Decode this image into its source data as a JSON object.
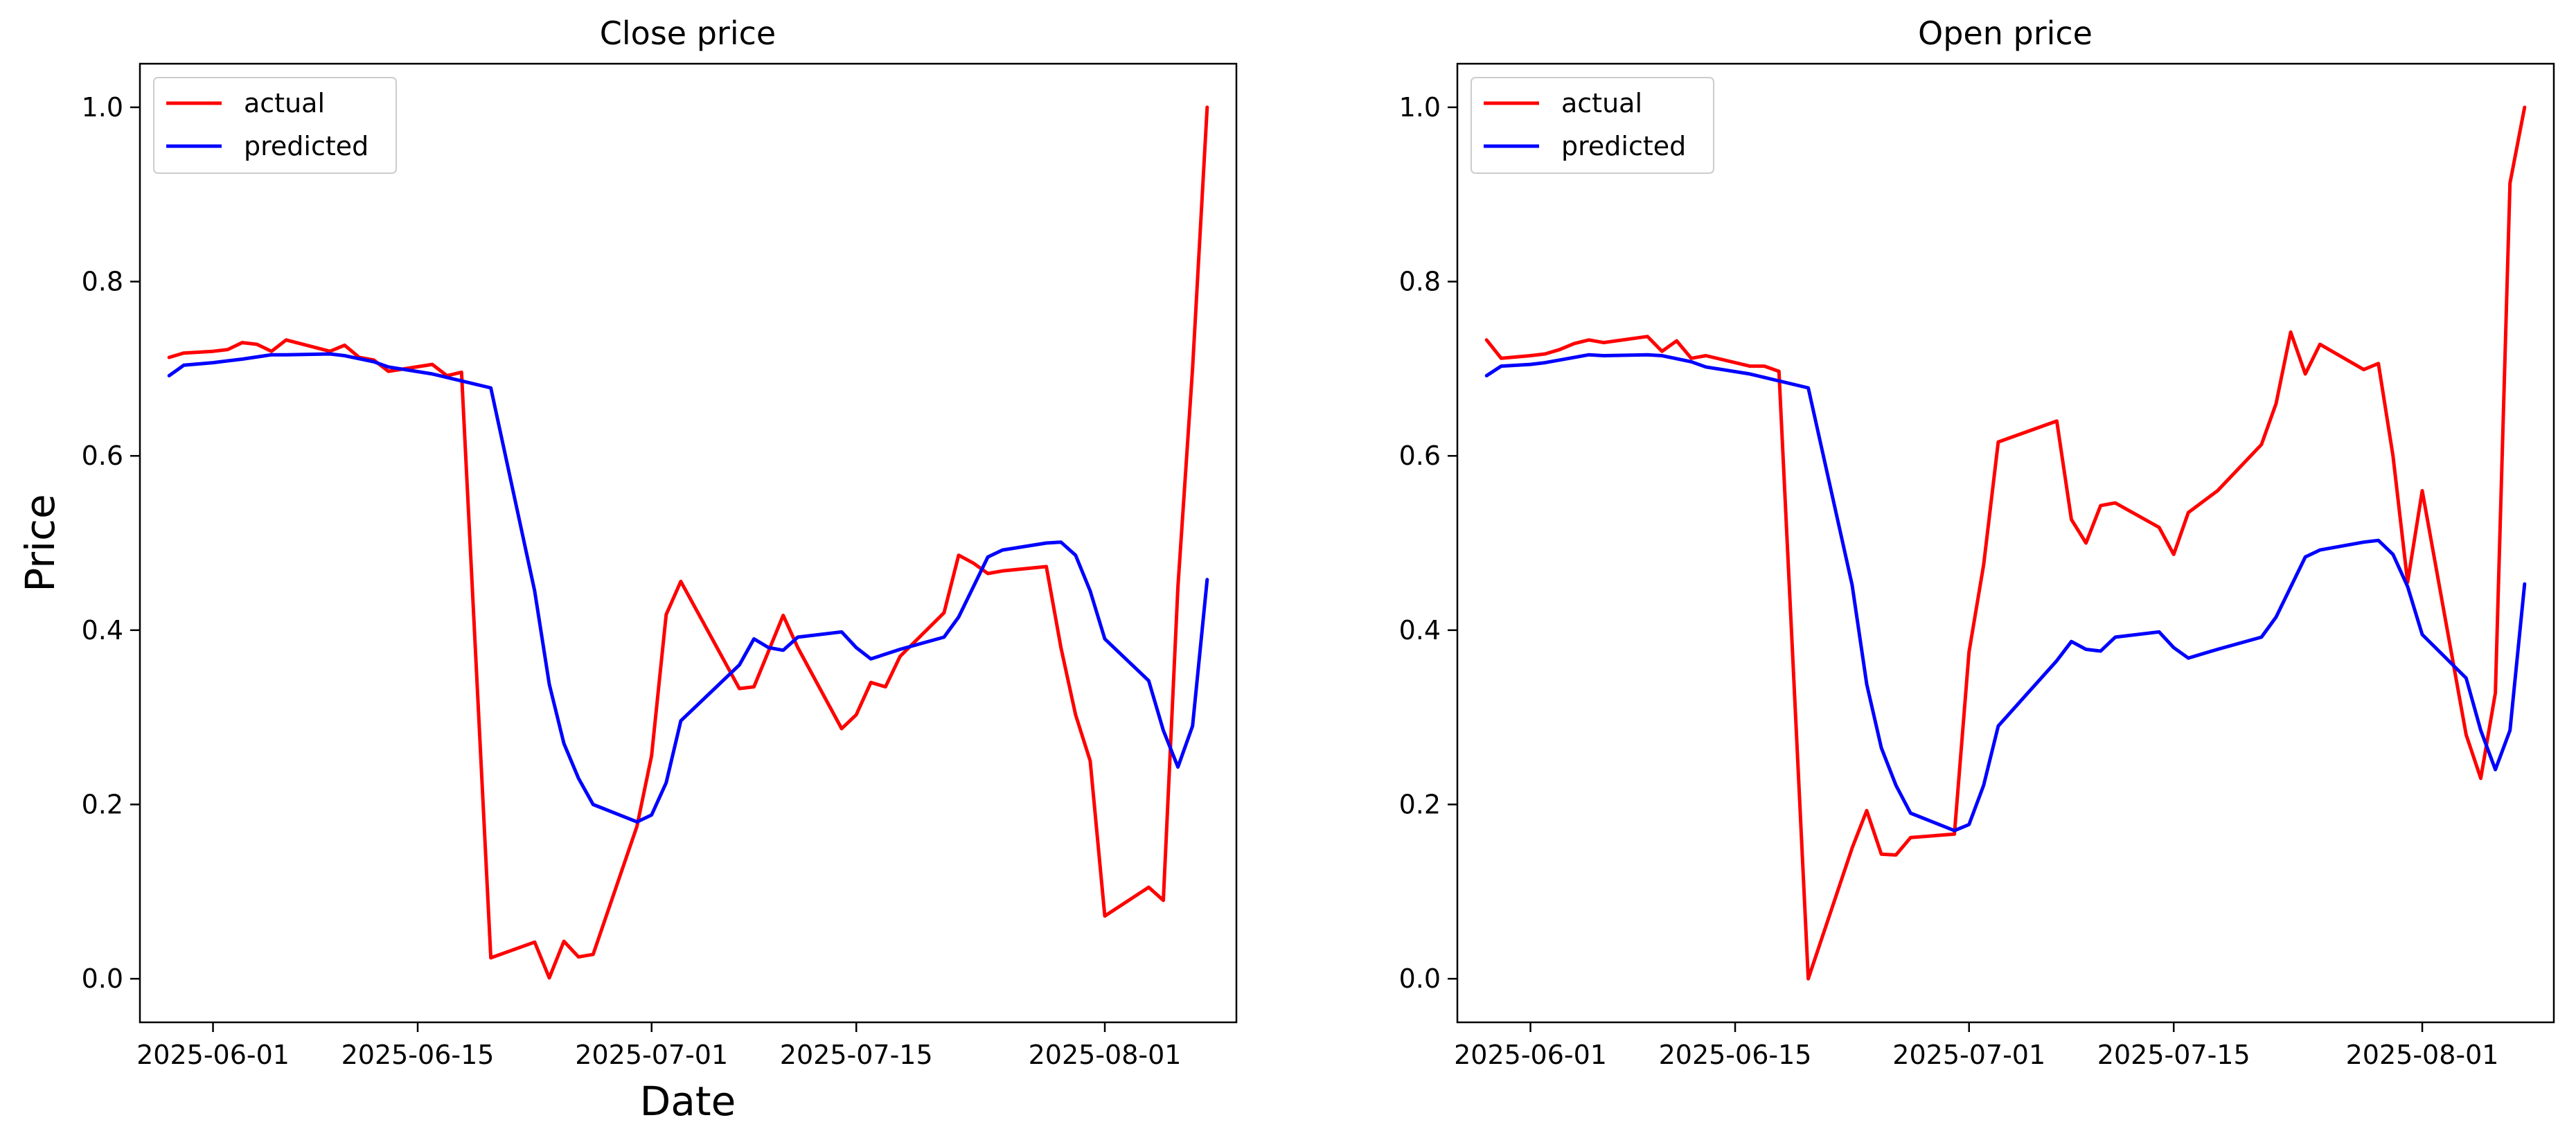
{
  "figure": {
    "xlabel": "Date",
    "ylabel": "Price"
  },
  "chart_data": [
    {
      "type": "line",
      "title": "Close price",
      "xlabel": "Date",
      "ylabel": "Price",
      "x_ticks": [
        "2025-06-01",
        "2025-06-15",
        "2025-07-01",
        "2025-07-15",
        "2025-08-01"
      ],
      "y_ticks": [
        "0.0",
        "0.2",
        "0.4",
        "0.6",
        "0.8",
        "1.0"
      ],
      "xlim": [
        "2025-05-27",
        "2025-08-10"
      ],
      "ylim": [
        -0.05,
        1.05
      ],
      "legend_position": "upper-left",
      "grid": false,
      "series": [
        {
          "name": "actual",
          "color": "#ff0000",
          "points": [
            [
              "2025-05-29",
              0.713
            ],
            [
              "2025-05-30",
              0.718
            ],
            [
              "2025-06-01",
              0.72
            ],
            [
              "2025-06-02",
              0.722
            ],
            [
              "2025-06-03",
              0.73
            ],
            [
              "2025-06-04",
              0.728
            ],
            [
              "2025-06-05",
              0.72
            ],
            [
              "2025-06-06",
              0.733
            ],
            [
              "2025-06-09",
              0.72
            ],
            [
              "2025-06-10",
              0.727
            ],
            [
              "2025-06-11",
              0.713
            ],
            [
              "2025-06-12",
              0.71
            ],
            [
              "2025-06-13",
              0.697
            ],
            [
              "2025-06-16",
              0.705
            ],
            [
              "2025-06-17",
              0.692
            ],
            [
              "2025-06-18",
              0.696
            ],
            [
              "2025-06-20",
              0.024
            ],
            [
              "2025-06-23",
              0.042
            ],
            [
              "2025-06-24",
              0.001
            ],
            [
              "2025-06-25",
              0.043
            ],
            [
              "2025-06-26",
              0.025
            ],
            [
              "2025-06-27",
              0.028
            ],
            [
              "2025-06-30",
              0.175
            ],
            [
              "2025-07-01",
              0.256
            ],
            [
              "2025-07-02",
              0.418
            ],
            [
              "2025-07-03",
              0.456
            ],
            [
              "2025-07-07",
              0.333
            ],
            [
              "2025-07-08",
              0.335
            ],
            [
              "2025-07-10",
              0.417
            ],
            [
              "2025-07-11",
              0.38
            ],
            [
              "2025-07-14",
              0.287
            ],
            [
              "2025-07-15",
              0.303
            ],
            [
              "2025-07-16",
              0.34
            ],
            [
              "2025-07-17",
              0.335
            ],
            [
              "2025-07-18",
              0.37
            ],
            [
              "2025-07-21",
              0.42
            ],
            [
              "2025-07-22",
              0.486
            ],
            [
              "2025-07-23",
              0.477
            ],
            [
              "2025-07-24",
              0.465
            ],
            [
              "2025-07-25",
              0.468
            ],
            [
              "2025-07-28",
              0.473
            ],
            [
              "2025-07-29",
              0.38
            ],
            [
              "2025-07-30",
              0.303
            ],
            [
              "2025-07-31",
              0.25
            ],
            [
              "2025-08-01",
              0.072
            ],
            [
              "2025-08-04",
              0.105
            ],
            [
              "2025-08-05",
              0.09
            ],
            [
              "2025-08-06",
              0.45
            ],
            [
              "2025-08-07",
              0.7
            ],
            [
              "2025-08-08",
              1.0
            ]
          ]
        },
        {
          "name": "predicted",
          "color": "#0000ff",
          "points": [
            [
              "2025-05-29",
              0.692
            ],
            [
              "2025-05-30",
              0.704
            ],
            [
              "2025-06-01",
              0.707
            ],
            [
              "2025-06-02",
              0.709
            ],
            [
              "2025-06-03",
              0.711
            ],
            [
              "2025-06-05",
              0.716
            ],
            [
              "2025-06-06",
              0.716
            ],
            [
              "2025-06-09",
              0.717
            ],
            [
              "2025-06-10",
              0.715
            ],
            [
              "2025-06-12",
              0.708
            ],
            [
              "2025-06-13",
              0.702
            ],
            [
              "2025-06-16",
              0.694
            ],
            [
              "2025-06-17",
              0.69
            ],
            [
              "2025-06-20",
              0.678
            ],
            [
              "2025-06-23",
              0.445
            ],
            [
              "2025-06-24",
              0.338
            ],
            [
              "2025-06-25",
              0.27
            ],
            [
              "2025-06-26",
              0.23
            ],
            [
              "2025-06-27",
              0.2
            ],
            [
              "2025-06-30",
              0.18
            ],
            [
              "2025-07-01",
              0.188
            ],
            [
              "2025-07-02",
              0.225
            ],
            [
              "2025-07-03",
              0.296
            ],
            [
              "2025-07-07",
              0.36
            ],
            [
              "2025-07-08",
              0.39
            ],
            [
              "2025-07-09",
              0.38
            ],
            [
              "2025-07-10",
              0.377
            ],
            [
              "2025-07-11",
              0.392
            ],
            [
              "2025-07-14",
              0.398
            ],
            [
              "2025-07-15",
              0.38
            ],
            [
              "2025-07-16",
              0.367
            ],
            [
              "2025-07-18",
              0.378
            ],
            [
              "2025-07-21",
              0.392
            ],
            [
              "2025-07-22",
              0.415
            ],
            [
              "2025-07-24",
              0.484
            ],
            [
              "2025-07-25",
              0.492
            ],
            [
              "2025-07-28",
              0.5
            ],
            [
              "2025-07-29",
              0.501
            ],
            [
              "2025-07-30",
              0.486
            ],
            [
              "2025-07-31",
              0.445
            ],
            [
              "2025-08-01",
              0.39
            ],
            [
              "2025-08-04",
              0.342
            ],
            [
              "2025-08-05",
              0.285
            ],
            [
              "2025-08-06",
              0.243
            ],
            [
              "2025-08-07",
              0.29
            ],
            [
              "2025-08-08",
              0.458
            ]
          ]
        }
      ]
    },
    {
      "type": "line",
      "title": "Open price",
      "xlabel": "",
      "ylabel": "",
      "x_ticks": [
        "2025-06-01",
        "2025-06-15",
        "2025-07-01",
        "2025-07-15",
        "2025-08-01"
      ],
      "y_ticks": [
        "0.0",
        "0.2",
        "0.4",
        "0.6",
        "0.8",
        "1.0"
      ],
      "xlim": [
        "2025-05-27",
        "2025-08-10"
      ],
      "ylim": [
        -0.05,
        1.05
      ],
      "legend_position": "upper-left",
      "grid": false,
      "series": [
        {
          "name": "actual",
          "color": "#ff0000",
          "points": [
            [
              "2025-05-29",
              0.733
            ],
            [
              "2025-05-30",
              0.712
            ],
            [
              "2025-06-01",
              0.715
            ],
            [
              "2025-06-02",
              0.717
            ],
            [
              "2025-06-03",
              0.722
            ],
            [
              "2025-06-04",
              0.729
            ],
            [
              "2025-06-05",
              0.733
            ],
            [
              "2025-06-06",
              0.73
            ],
            [
              "2025-06-09",
              0.737
            ],
            [
              "2025-06-10",
              0.72
            ],
            [
              "2025-06-11",
              0.732
            ],
            [
              "2025-06-12",
              0.712
            ],
            [
              "2025-06-13",
              0.715
            ],
            [
              "2025-06-16",
              0.703
            ],
            [
              "2025-06-17",
              0.703
            ],
            [
              "2025-06-18",
              0.697
            ],
            [
              "2025-06-20",
              0.0
            ],
            [
              "2025-06-23",
              0.15
            ],
            [
              "2025-06-24",
              0.193
            ],
            [
              "2025-06-25",
              0.143
            ],
            [
              "2025-06-26",
              0.142
            ],
            [
              "2025-06-27",
              0.162
            ],
            [
              "2025-06-30",
              0.166
            ],
            [
              "2025-07-01",
              0.375
            ],
            [
              "2025-07-02",
              0.475
            ],
            [
              "2025-07-03",
              0.616
            ],
            [
              "2025-07-07",
              0.64
            ],
            [
              "2025-07-08",
              0.527
            ],
            [
              "2025-07-09",
              0.5
            ],
            [
              "2025-07-10",
              0.543
            ],
            [
              "2025-07-11",
              0.546
            ],
            [
              "2025-07-14",
              0.518
            ],
            [
              "2025-07-15",
              0.487
            ],
            [
              "2025-07-16",
              0.535
            ],
            [
              "2025-07-18",
              0.56
            ],
            [
              "2025-07-21",
              0.613
            ],
            [
              "2025-07-22",
              0.66
            ],
            [
              "2025-07-23",
              0.742
            ],
            [
              "2025-07-24",
              0.694
            ],
            [
              "2025-07-25",
              0.728
            ],
            [
              "2025-07-28",
              0.699
            ],
            [
              "2025-07-29",
              0.706
            ],
            [
              "2025-07-30",
              0.6
            ],
            [
              "2025-07-31",
              0.455
            ],
            [
              "2025-08-01",
              0.56
            ],
            [
              "2025-08-04",
              0.28
            ],
            [
              "2025-08-05",
              0.23
            ],
            [
              "2025-08-06",
              0.328
            ],
            [
              "2025-08-07",
              0.913
            ],
            [
              "2025-08-08",
              1.0
            ]
          ]
        },
        {
          "name": "predicted",
          "color": "#0000ff",
          "points": [
            [
              "2025-05-29",
              0.692
            ],
            [
              "2025-05-30",
              0.703
            ],
            [
              "2025-06-01",
              0.705
            ],
            [
              "2025-06-02",
              0.707
            ],
            [
              "2025-06-03",
              0.71
            ],
            [
              "2025-06-05",
              0.716
            ],
            [
              "2025-06-06",
              0.715
            ],
            [
              "2025-06-09",
              0.716
            ],
            [
              "2025-06-10",
              0.715
            ],
            [
              "2025-06-12",
              0.708
            ],
            [
              "2025-06-13",
              0.702
            ],
            [
              "2025-06-16",
              0.694
            ],
            [
              "2025-06-17",
              0.69
            ],
            [
              "2025-06-20",
              0.678
            ],
            [
              "2025-06-23",
              0.452
            ],
            [
              "2025-06-24",
              0.338
            ],
            [
              "2025-06-25",
              0.265
            ],
            [
              "2025-06-26",
              0.222
            ],
            [
              "2025-06-27",
              0.19
            ],
            [
              "2025-06-30",
              0.17
            ],
            [
              "2025-07-01",
              0.177
            ],
            [
              "2025-07-02",
              0.222
            ],
            [
              "2025-07-03",
              0.29
            ],
            [
              "2025-07-07",
              0.365
            ],
            [
              "2025-07-08",
              0.387
            ],
            [
              "2025-07-09",
              0.378
            ],
            [
              "2025-07-10",
              0.376
            ],
            [
              "2025-07-11",
              0.392
            ],
            [
              "2025-07-14",
              0.398
            ],
            [
              "2025-07-15",
              0.38
            ],
            [
              "2025-07-16",
              0.368
            ],
            [
              "2025-07-18",
              0.378
            ],
            [
              "2025-07-21",
              0.392
            ],
            [
              "2025-07-22",
              0.415
            ],
            [
              "2025-07-24",
              0.484
            ],
            [
              "2025-07-25",
              0.492
            ],
            [
              "2025-07-28",
              0.501
            ],
            [
              "2025-07-29",
              0.503
            ],
            [
              "2025-07-30",
              0.487
            ],
            [
              "2025-07-31",
              0.45
            ],
            [
              "2025-08-01",
              0.395
            ],
            [
              "2025-08-04",
              0.345
            ],
            [
              "2025-08-05",
              0.285
            ],
            [
              "2025-08-06",
              0.24
            ],
            [
              "2025-08-07",
              0.285
            ],
            [
              "2025-08-08",
              0.453
            ]
          ]
        }
      ]
    }
  ]
}
